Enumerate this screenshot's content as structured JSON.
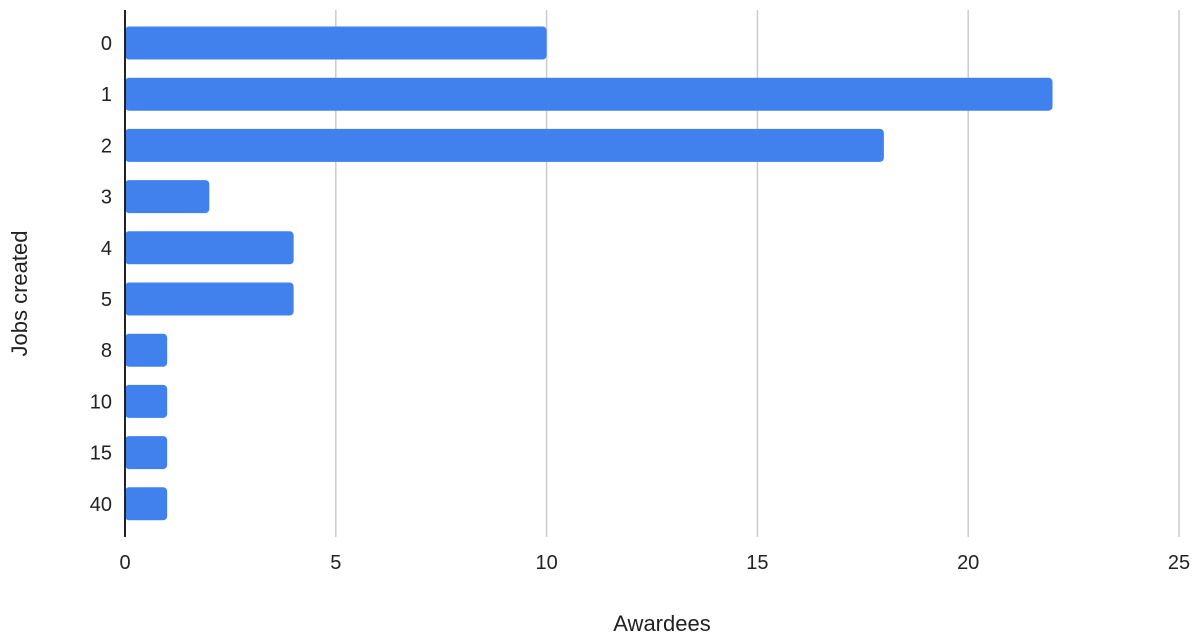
{
  "chart_data": {
    "type": "bar",
    "orientation": "horizontal",
    "categories": [
      "0",
      "1",
      "2",
      "3",
      "4",
      "5",
      "8",
      "10",
      "15",
      "40"
    ],
    "values": [
      10,
      22,
      18,
      2,
      4,
      4,
      1,
      1,
      1,
      1
    ],
    "xlabel": "Awardees",
    "ylabel": "Jobs created",
    "xlim": [
      0,
      25
    ],
    "xticks": [
      "0",
      "5",
      "10",
      "15",
      "20",
      "25"
    ],
    "grid": "vertical",
    "legend": "none",
    "colors": {
      "bar": "#4181ee",
      "grid": "#cccccc",
      "axis": "#222222"
    }
  }
}
